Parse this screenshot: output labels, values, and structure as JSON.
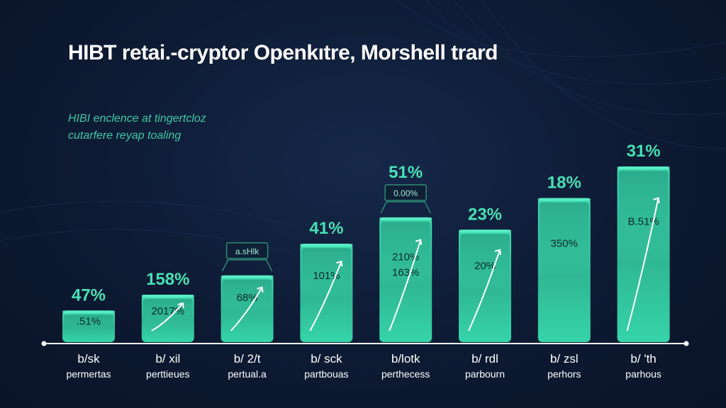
{
  "chart_data": {
    "type": "bar",
    "title": "HIBT retai.-cryptor Openkıtre, Morshell trard",
    "subtitle_lines": [
      "HIBI enclence at tingertcloz",
      "cutarfere reyap toaling"
    ],
    "categories": [
      {
        "top": "b/sk",
        "bottom": "permertas"
      },
      {
        "top": "b/ xil",
        "bottom": "perttieues"
      },
      {
        "top": "b/ 2/t",
        "bottom": "pertual.a"
      },
      {
        "top": "b/ sck",
        "bottom": "partbouas"
      },
      {
        "top": "b/lotk",
        "bottom": "perthecess"
      },
      {
        "top": "b/ rdl",
        "bottom": "parbourn"
      },
      {
        "top": "b/ zsl",
        "bottom": "perhors"
      },
      {
        "top": "b/ 'th",
        "bottom": "parhous"
      }
    ],
    "value_labels": [
      "47%",
      "158%",
      "",
      "41%",
      "51%",
      "23%",
      "18%",
      "31%"
    ],
    "inner_labels": [
      [
        ".51%"
      ],
      [
        "2017%"
      ],
      [
        "68%"
      ],
      [
        "101%"
      ],
      [
        "210%",
        "163%"
      ],
      [
        "20%"
      ],
      [
        "350%"
      ],
      [
        "B.51%"
      ]
    ],
    "badge_labels": [
      "",
      "",
      "a.sHlk",
      "",
      "0.00%",
      "",
      "",
      ""
    ],
    "bar_heights_relative": [
      0.18,
      0.27,
      0.38,
      0.56,
      0.71,
      0.64,
      0.82,
      1.0
    ],
    "colors": {
      "bar_top": "#3dd9b0",
      "bar_bottom": "#2a9a80",
      "bar_glow": "#5ff2c8",
      "value_label": "#48e0b4",
      "axis": "#ffffff",
      "background": "#0d1a33"
    }
  }
}
